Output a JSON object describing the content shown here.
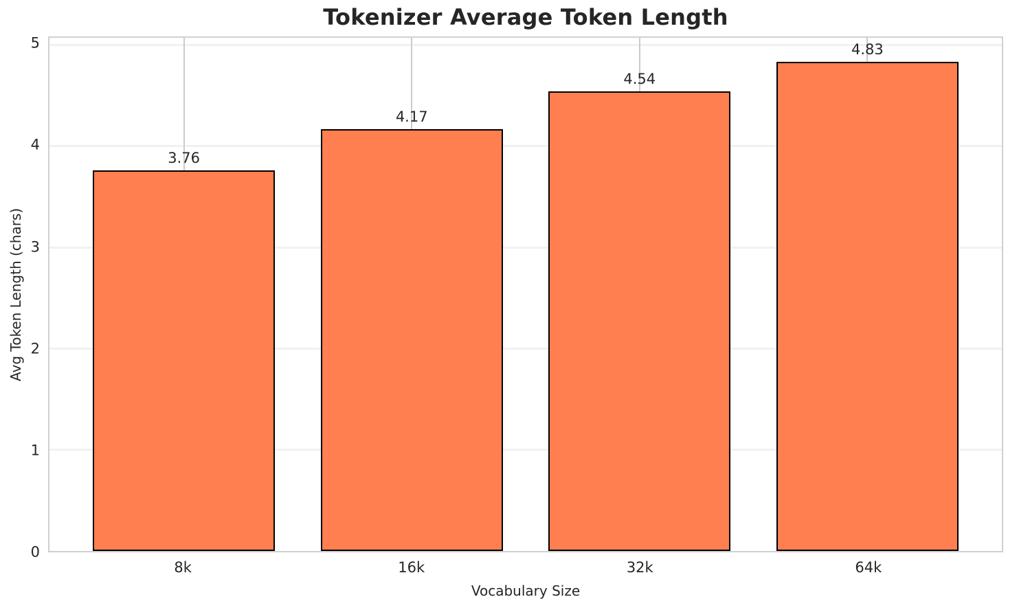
{
  "chart_data": {
    "type": "bar",
    "title": "Tokenizer Average Token Length",
    "xlabel": "Vocabulary Size",
    "ylabel": "Avg Token Length (chars)",
    "categories": [
      "8k",
      "16k",
      "32k",
      "64k"
    ],
    "values": [
      3.76,
      4.17,
      4.54,
      4.83
    ],
    "value_labels": [
      "3.76",
      "4.17",
      "4.54",
      "4.83"
    ],
    "yticks": [
      0,
      1,
      2,
      3,
      4,
      5
    ],
    "ytick_labels": [
      "0",
      "1",
      "2",
      "3",
      "4",
      "5"
    ],
    "ylim": [
      0,
      5.07
    ],
    "xlim": [
      -0.59,
      3.59
    ],
    "bar_width_units": 0.8,
    "grid": true,
    "legend_position": "none",
    "style": {
      "background": "#ffffff",
      "text_color": "#262626",
      "bar_fill": "#ff7f50",
      "bar_edge": "#000000",
      "spine_color": "#d0d0d0",
      "hgrid_color": "#f1f1f1",
      "vgrid_color": "#cbcbcb"
    }
  }
}
